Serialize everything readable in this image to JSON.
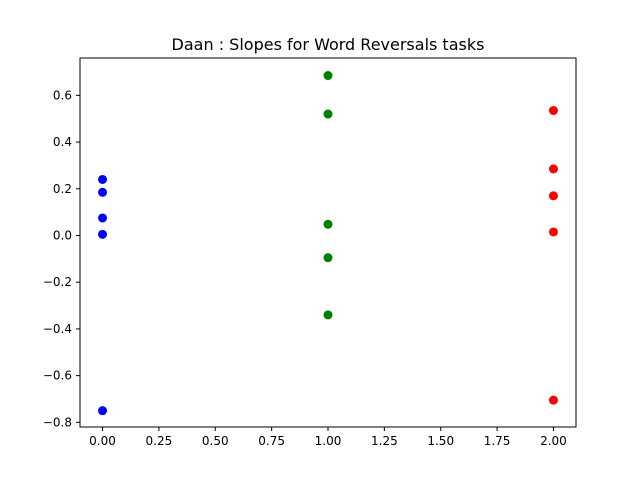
{
  "chart_data": {
    "type": "scatter",
    "title": "Daan : Slopes for Word Reversals tasks",
    "xlabel": "",
    "ylabel": "",
    "xlim": [
      -0.1,
      2.1
    ],
    "ylim": [
      -0.82,
      0.76
    ],
    "grid": false,
    "x_ticks": [
      0.0,
      0.25,
      0.5,
      0.75,
      1.0,
      1.25,
      1.5,
      1.75,
      2.0
    ],
    "x_tick_labels": [
      "0.00",
      "0.25",
      "0.50",
      "0.75",
      "1.00",
      "1.25",
      "1.50",
      "1.75",
      "2.00"
    ],
    "y_ticks": [
      -0.8,
      -0.6,
      -0.4,
      -0.2,
      0.0,
      0.2,
      0.4,
      0.6
    ],
    "y_tick_labels": [
      "−0.8",
      "−0.6",
      "−0.4",
      "−0.2",
      "0.0",
      "0.2",
      "0.4",
      "0.6"
    ],
    "series": [
      {
        "color": "#0000ff",
        "x": [
          0,
          0,
          0,
          0,
          0
        ],
        "y": [
          0.24,
          0.185,
          0.075,
          0.005,
          -0.75
        ]
      },
      {
        "color": "#008000",
        "x": [
          1,
          1,
          1,
          1,
          1
        ],
        "y": [
          0.685,
          0.52,
          0.048,
          -0.095,
          -0.34
        ]
      },
      {
        "color": "#ff0000",
        "x": [
          2,
          2,
          2,
          2,
          2
        ],
        "y": [
          0.535,
          0.285,
          0.17,
          0.015,
          -0.705
        ]
      }
    ]
  }
}
